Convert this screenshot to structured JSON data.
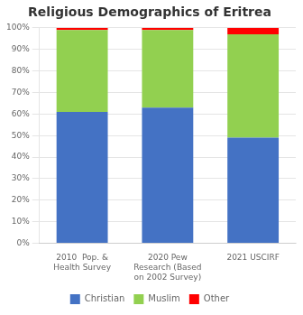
{
  "chart_data": {
    "type": "bar",
    "title": "Religious Demographics of Eritrea",
    "categories": [
      "2010  Pop. &\nHealth Survey",
      "2020 Pew\nResearch (Based\non 2002 Survey)",
      "2021 USCIRF"
    ],
    "series": [
      {
        "name": "Christian",
        "color": "#4472C4",
        "values": [
          61,
          63,
          49
        ]
      },
      {
        "name": "Muslim",
        "color": "#92D050",
        "values": [
          38,
          36,
          48
        ]
      },
      {
        "name": "Other",
        "color": "#FF0000",
        "values": [
          1,
          1,
          3
        ]
      }
    ],
    "stacked": true,
    "ylim": [
      0,
      100
    ],
    "yticks": [
      {
        "value": 0,
        "label": "0%"
      },
      {
        "value": 10,
        "label": "10%"
      },
      {
        "value": 20,
        "label": "20%"
      },
      {
        "value": 30,
        "label": "30%"
      },
      {
        "value": 40,
        "label": "40%"
      },
      {
        "value": 50,
        "label": "50%"
      },
      {
        "value": 60,
        "label": "60%"
      },
      {
        "value": 70,
        "label": "70%"
      },
      {
        "value": 80,
        "label": "80%"
      },
      {
        "value": 90,
        "label": "90%"
      },
      {
        "value": 100,
        "label": "100%"
      }
    ],
    "grid": true,
    "legend": "bottom"
  }
}
